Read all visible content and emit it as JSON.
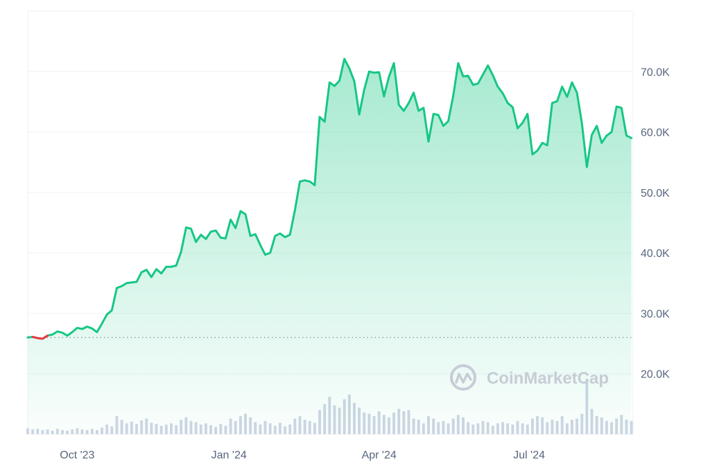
{
  "chart_data": {
    "type": "area",
    "x": [
      "2023-09-01",
      "2023-09-04",
      "2023-09-07",
      "2023-09-10",
      "2023-09-13",
      "2023-09-16",
      "2023-09-19",
      "2023-09-22",
      "2023-09-25",
      "2023-09-28",
      "2023-10-01",
      "2023-10-04",
      "2023-10-07",
      "2023-10-10",
      "2023-10-13",
      "2023-10-16",
      "2023-10-19",
      "2023-10-22",
      "2023-10-25",
      "2023-10-28",
      "2023-10-31",
      "2023-11-03",
      "2023-11-06",
      "2023-11-09",
      "2023-11-12",
      "2023-11-15",
      "2023-11-18",
      "2023-11-21",
      "2023-11-24",
      "2023-11-27",
      "2023-11-30",
      "2023-12-03",
      "2023-12-06",
      "2023-12-09",
      "2023-12-12",
      "2023-12-15",
      "2023-12-18",
      "2023-12-21",
      "2023-12-24",
      "2023-12-27",
      "2023-12-30",
      "2024-01-02",
      "2024-01-05",
      "2024-01-08",
      "2024-01-11",
      "2024-01-14",
      "2024-01-17",
      "2024-01-20",
      "2024-01-23",
      "2024-01-26",
      "2024-01-29",
      "2024-02-01",
      "2024-02-04",
      "2024-02-07",
      "2024-02-10",
      "2024-02-13",
      "2024-02-16",
      "2024-02-19",
      "2024-02-22",
      "2024-02-25",
      "2024-02-28",
      "2024-03-02",
      "2024-03-05",
      "2024-03-08",
      "2024-03-11",
      "2024-03-14",
      "2024-03-17",
      "2024-03-20",
      "2024-03-23",
      "2024-03-26",
      "2024-03-29",
      "2024-04-01",
      "2024-04-04",
      "2024-04-07",
      "2024-04-10",
      "2024-04-13",
      "2024-04-16",
      "2024-04-19",
      "2024-04-22",
      "2024-04-25",
      "2024-04-28",
      "2024-05-01",
      "2024-05-04",
      "2024-05-07",
      "2024-05-10",
      "2024-05-13",
      "2024-05-16",
      "2024-05-19",
      "2024-05-22",
      "2024-05-25",
      "2024-05-28",
      "2024-05-31",
      "2024-06-03",
      "2024-06-06",
      "2024-06-09",
      "2024-06-12",
      "2024-06-15",
      "2024-06-18",
      "2024-06-21",
      "2024-06-24",
      "2024-06-27",
      "2024-06-30",
      "2024-07-03",
      "2024-07-06",
      "2024-07-09",
      "2024-07-12",
      "2024-07-15",
      "2024-07-18",
      "2024-07-21",
      "2024-07-24",
      "2024-07-27",
      "2024-07-30",
      "2024-08-02",
      "2024-08-05",
      "2024-08-08",
      "2024-08-11",
      "2024-08-14",
      "2024-08-17",
      "2024-08-20",
      "2024-08-23",
      "2024-08-26",
      "2024-08-29",
      "2024-09-01"
    ],
    "values": [
      26000,
      26100,
      25900,
      25800,
      26300,
      26500,
      27000,
      26800,
      26300,
      26900,
      27600,
      27400,
      27800,
      27500,
      26900,
      28300,
      29800,
      30500,
      34200,
      34500,
      35000,
      35100,
      35200,
      36800,
      37200,
      36000,
      37300,
      36600,
      37700,
      37700,
      37900,
      40200,
      44200,
      44000,
      41800,
      43000,
      42300,
      43500,
      43700,
      42500,
      42400,
      45500,
      44100,
      46900,
      46400,
      42800,
      43100,
      41300,
      39700,
      40000,
      42800,
      43200,
      42600,
      43000,
      47100,
      51800,
      52000,
      51800,
      51200,
      62500,
      61700,
      68200,
      67600,
      68500,
      72100,
      70500,
      68400,
      62900,
      67000,
      70000,
      69800,
      69900,
      65900,
      69100,
      71400,
      64500,
      63500,
      64800,
      66500,
      63500,
      64000,
      58400,
      63000,
      62800,
      61000,
      61800,
      66000,
      71400,
      69200,
      69300,
      67800,
      68000,
      69500,
      71000,
      69400,
      67500,
      66400,
      64800,
      64100,
      60600,
      61500,
      63000,
      56300,
      56900,
      58200,
      57800,
      64800,
      65100,
      67500,
      65800,
      68200,
      66500,
      61400,
      54200,
      59500,
      61000,
      58200,
      59400,
      60000,
      64200,
      64000,
      59400,
      59000
    ],
    "volume": [
      0.1,
      0.08,
      0.09,
      0.07,
      0.08,
      0.06,
      0.09,
      0.07,
      0.06,
      0.08,
      0.1,
      0.08,
      0.07,
      0.09,
      0.07,
      0.11,
      0.16,
      0.13,
      0.3,
      0.24,
      0.18,
      0.21,
      0.17,
      0.23,
      0.26,
      0.19,
      0.17,
      0.14,
      0.16,
      0.18,
      0.15,
      0.24,
      0.28,
      0.22,
      0.2,
      0.16,
      0.18,
      0.15,
      0.12,
      0.17,
      0.14,
      0.26,
      0.22,
      0.3,
      0.34,
      0.28,
      0.2,
      0.16,
      0.22,
      0.18,
      0.14,
      0.19,
      0.13,
      0.16,
      0.26,
      0.3,
      0.24,
      0.22,
      0.19,
      0.4,
      0.5,
      0.62,
      0.48,
      0.44,
      0.58,
      0.66,
      0.52,
      0.44,
      0.36,
      0.34,
      0.3,
      0.38,
      0.32,
      0.28,
      0.36,
      0.42,
      0.38,
      0.4,
      0.26,
      0.24,
      0.18,
      0.3,
      0.26,
      0.2,
      0.22,
      0.18,
      0.26,
      0.32,
      0.28,
      0.2,
      0.16,
      0.18,
      0.22,
      0.2,
      0.14,
      0.18,
      0.2,
      0.18,
      0.16,
      0.22,
      0.18,
      0.16,
      0.26,
      0.3,
      0.28,
      0.2,
      0.24,
      0.22,
      0.3,
      0.18,
      0.24,
      0.26,
      0.34,
      0.92,
      0.42,
      0.3,
      0.28,
      0.22,
      0.2,
      0.26,
      0.32,
      0.24,
      0.22
    ],
    "reference_value": 26000,
    "xlim": [
      "2023-09-01",
      "2024-09-02"
    ],
    "ylim": [
      10000,
      80000
    ],
    "yticks": [
      20000,
      30000,
      40000,
      50000,
      60000,
      70000
    ],
    "ytick_labels": [
      "20.0K",
      "30.0K",
      "40.0K",
      "50.0K",
      "60.0K",
      "70.0K"
    ],
    "xticks": [
      "2023-10-01",
      "2024-01-01",
      "2024-04-01",
      "2024-07-01"
    ],
    "xtick_labels": [
      "Oct '23",
      "Jan '24",
      "Apr '24",
      "Jul '24"
    ],
    "title": "",
    "xlabel": "",
    "ylabel": "",
    "grid": "horizontal",
    "colors": {
      "line": "#16c784",
      "below_reference": "#ea3943",
      "fill_top": "#16c784",
      "volume": "#cfd6e4",
      "reference_line": "#8a919e",
      "grid": "#eff2f5"
    }
  },
  "watermark": {
    "text": "CoinMarketCap",
    "icon": "coinmarketcap-logo-icon"
  }
}
